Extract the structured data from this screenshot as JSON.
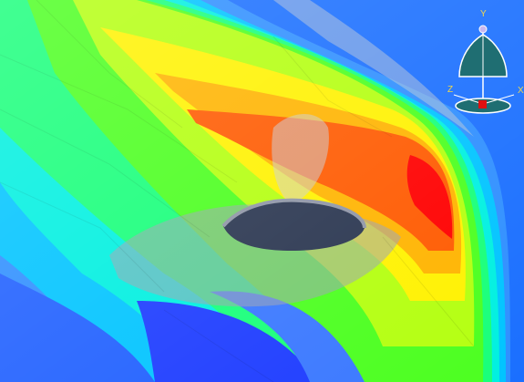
{
  "viewport": {
    "background_top": "#26324f",
    "background_bottom": "#56607a",
    "contour_palette": [
      "#0000ff",
      "#0050ff",
      "#00a0ff",
      "#00e0ff",
      "#00ff90",
      "#20ff00",
      "#a0ff00",
      "#ffff00",
      "#ffb000",
      "#ff6000",
      "#ff0000"
    ]
  },
  "triad": {
    "y_label": "Y",
    "x_label": "X",
    "z_label": "Z",
    "colors": {
      "dome": "#1f6e72",
      "axis_y_tip": "#c7b7f0",
      "origin": "#e01010",
      "edge": "#ffffff"
    }
  }
}
